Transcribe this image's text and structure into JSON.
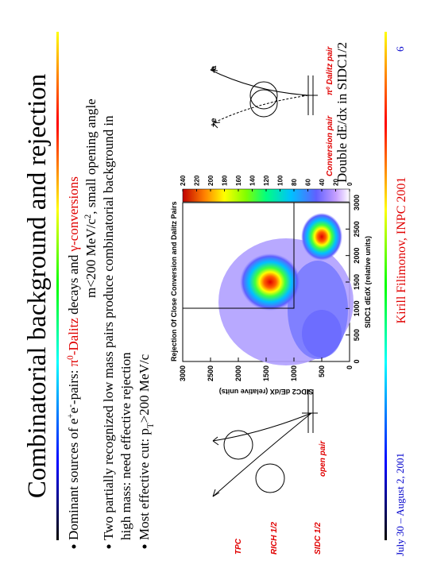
{
  "title": "Combinatorial background and rejection",
  "bullets": [
    {
      "lines": [
        [
          {
            "text": "Dominant sources of e"
          },
          {
            "text": "+",
            "sup": true
          },
          {
            "text": "e"
          },
          {
            "text": "-",
            "sup": true
          },
          {
            "text": "-pairs: "
          },
          {
            "text": "π",
            "color": "#e00000"
          },
          {
            "text": "0",
            "sup": true,
            "color": "#e00000"
          },
          {
            "text": "-Dalitz",
            "color": "#e00000"
          },
          {
            "text": " decays and "
          },
          {
            "text": "γ-conversions",
            "color": "#e00000"
          }
        ],
        [
          {
            "text": "m<200 MeV/c"
          },
          {
            "text": "2",
            "sup": true
          },
          {
            "text": ", small opening angle"
          }
        ]
      ]
    },
    {
      "lines": [
        [
          {
            "text": "Two partially recognized low mass pairs produce combinatorial background in"
          }
        ],
        [
          {
            "text": "high mass: need effective rejection"
          }
        ]
      ]
    },
    {
      "lines": [
        [
          {
            "text": "Most effective cut: p"
          },
          {
            "text": "T",
            "sub": true
          },
          {
            "text": ">200 MeV/c"
          }
        ]
      ]
    }
  ],
  "figure": {
    "title": "Rejection Of Close Conversion and Dalitz Pairs",
    "x_label": "SIDC1 dEdX (relative units)",
    "y_label": "SIDC2 dE/dX (relative units)",
    "xlim": [
      0,
      3000
    ],
    "ylim": [
      0,
      3000
    ],
    "xticks": [
      0,
      500,
      1000,
      1500,
      2000,
      2500,
      3000
    ],
    "yticks": [
      0,
      500,
      1000,
      1500,
      2000,
      2500,
      3000
    ],
    "colorbar": {
      "lim": [
        0,
        240
      ],
      "ticks": [
        0,
        20,
        40,
        60,
        80,
        100,
        120,
        140,
        160,
        180,
        200,
        220,
        240
      ]
    }
  },
  "caption": "Double dE/dx in SIDC1/2",
  "left_diagram": {
    "labels": [
      "TPC",
      "RICH 1/2",
      "SIDC 1/2"
    ],
    "pair": "open pair"
  },
  "right_diagram": {
    "minus": "-e",
    "plus": "+e",
    "conversion": "Conversion pair",
    "dalitz": [
      {
        "text": "π"
      },
      {
        "text": "0",
        "sup": true
      },
      {
        "text": " Dalitz pair"
      }
    ]
  },
  "footer": {
    "date": "July 30 – August 2, 2001",
    "author": "Kirill Filimonov, INPC 2001",
    "page": 6
  }
}
